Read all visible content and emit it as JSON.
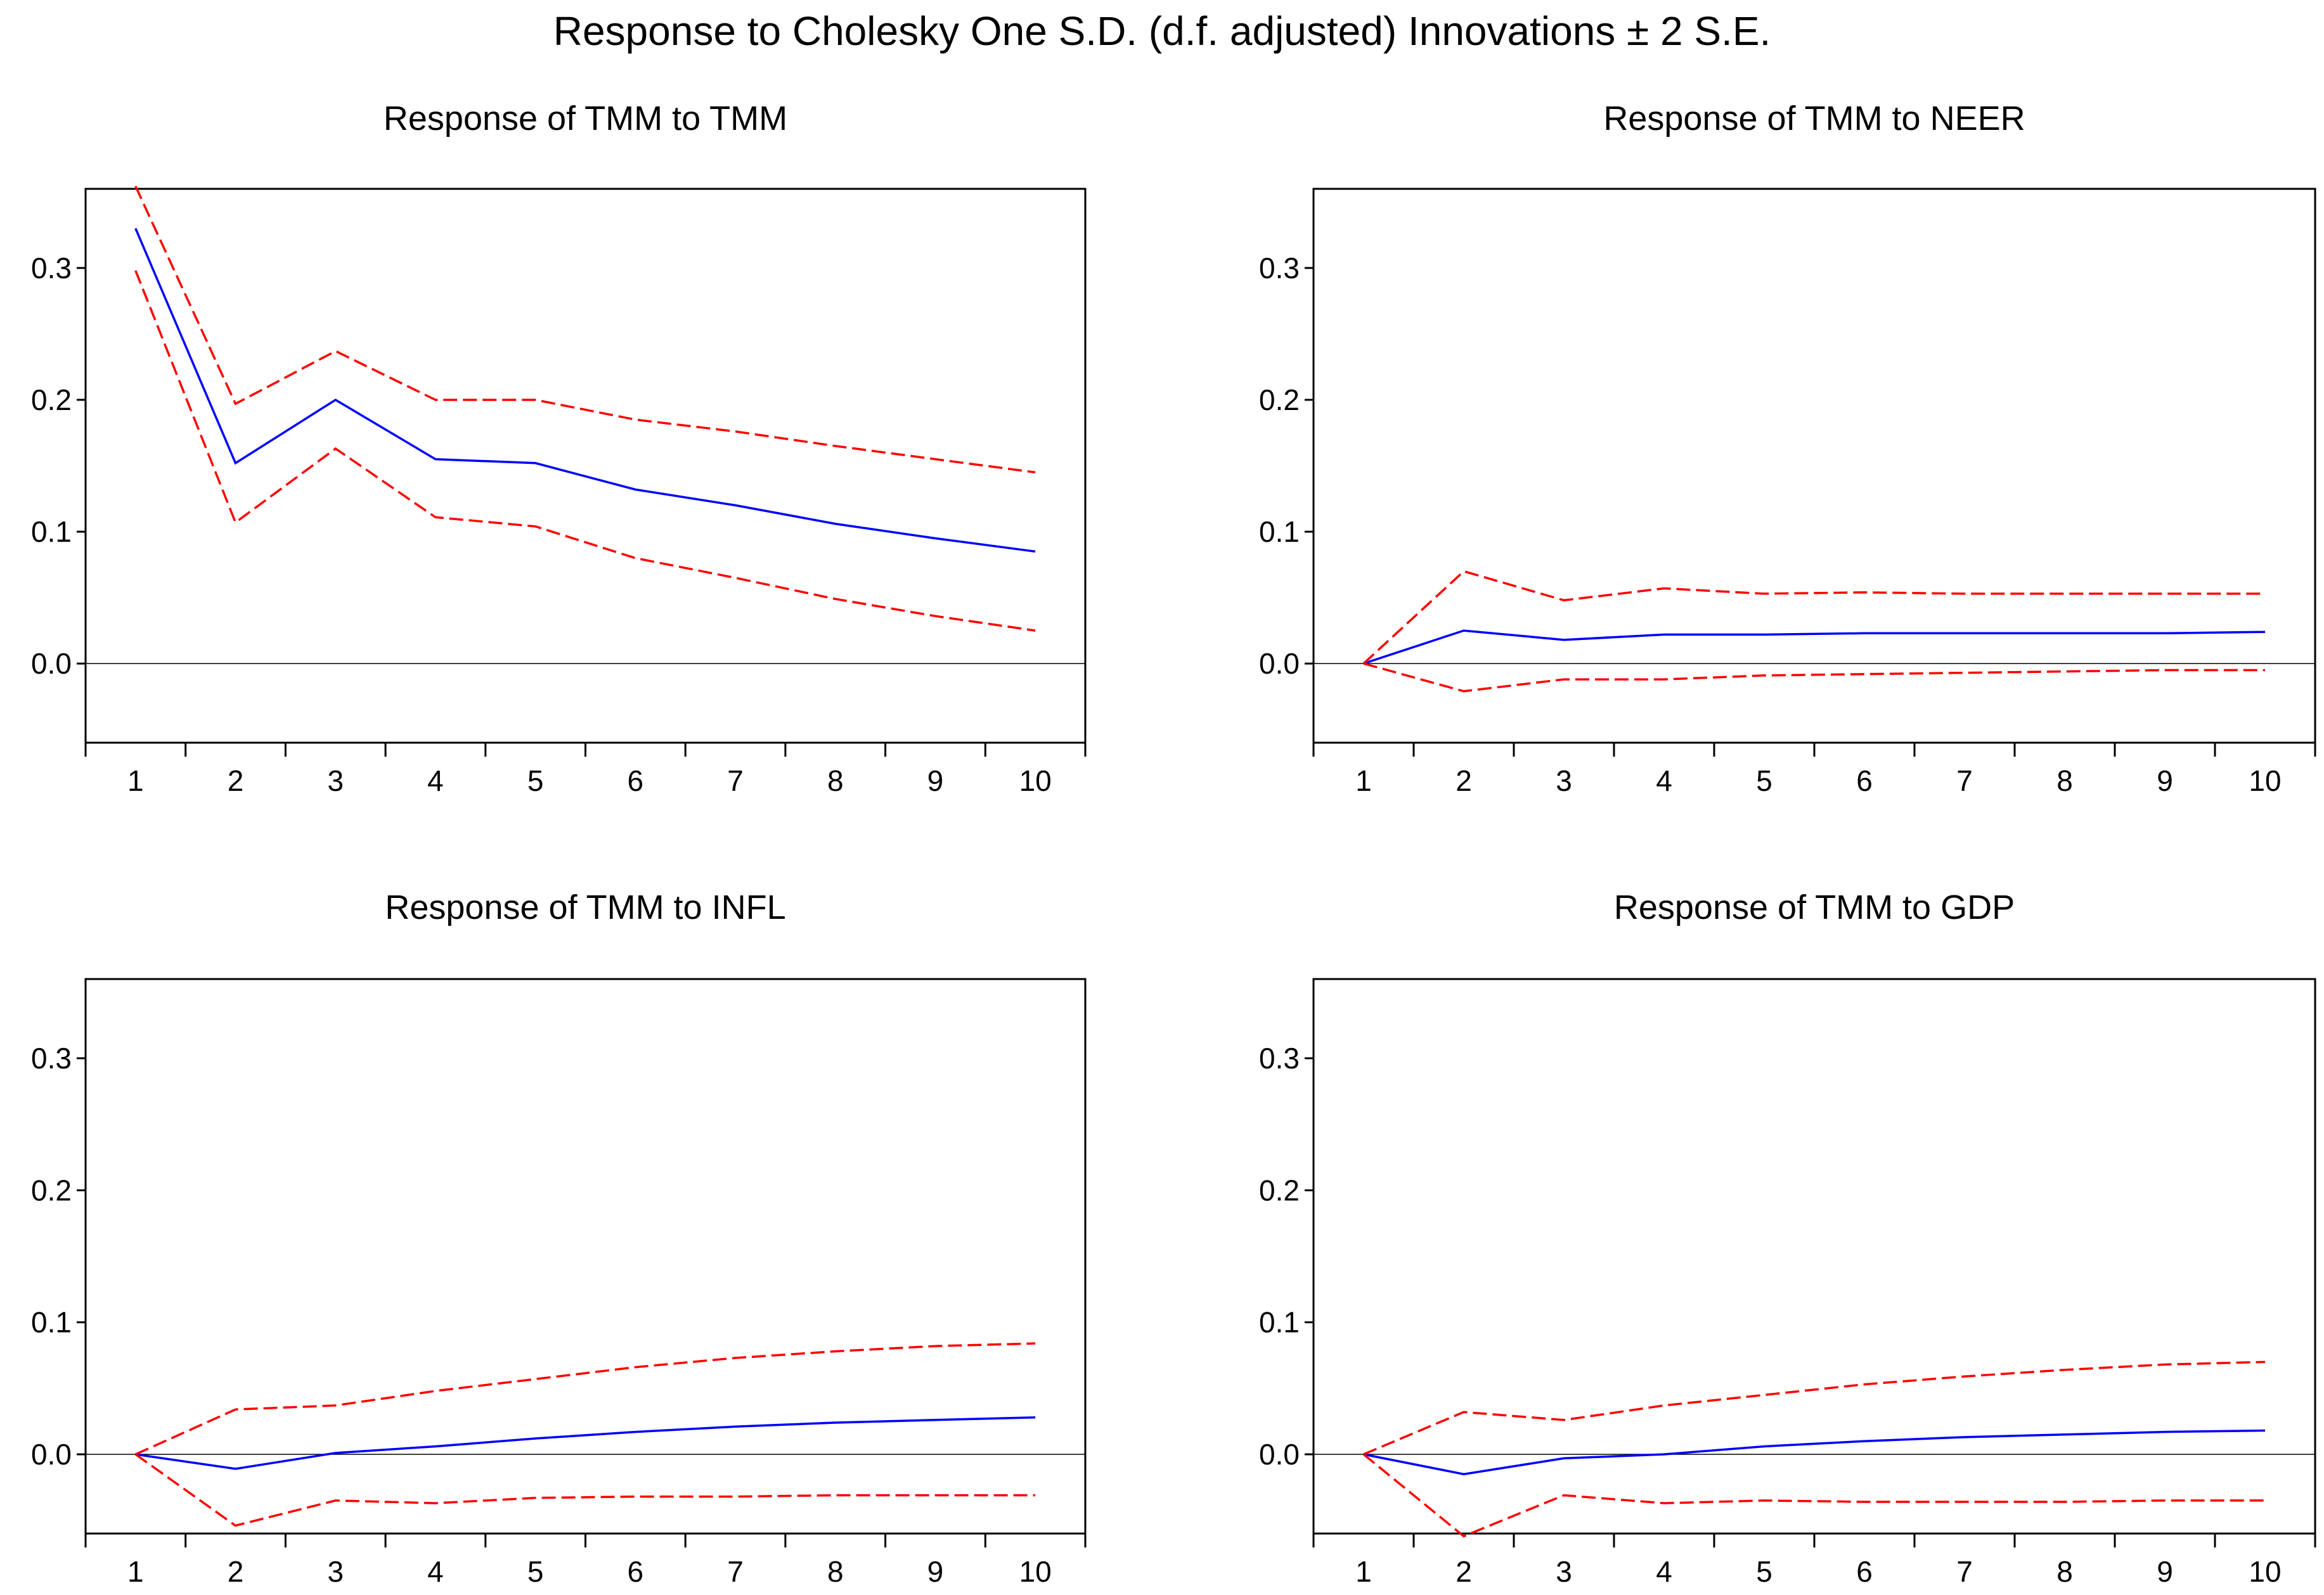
{
  "figure": {
    "title": "Response to Cholesky One S.D. (d.f. adjusted) Innovations ± 2 S.E.",
    "colors": {
      "response": "#0000ff",
      "bands": "#ff0000",
      "zero_line": "#000000",
      "frame": "#000000"
    }
  },
  "chart_data": [
    {
      "type": "line",
      "title": "Response of TMM to TMM",
      "x": [
        1,
        2,
        3,
        4,
        5,
        6,
        7,
        8,
        9,
        10
      ],
      "ylim": [
        -0.06,
        0.36
      ],
      "yticks": [
        "0.0",
        "0.1",
        "0.2",
        "0.3"
      ],
      "ytick_values": [
        0.0,
        0.1,
        0.2,
        0.3
      ],
      "xticks": [
        "1",
        "2",
        "3",
        "4",
        "5",
        "6",
        "7",
        "8",
        "9",
        "10"
      ],
      "series": [
        {
          "name": "response",
          "values": [
            0.33,
            0.152,
            0.2,
            0.155,
            0.152,
            0.132,
            0.12,
            0.106,
            0.095,
            0.085
          ]
        },
        {
          "name": "upper",
          "values": [
            0.362,
            0.197,
            0.237,
            0.2,
            0.2,
            0.185,
            0.176,
            0.165,
            0.155,
            0.145
          ]
        },
        {
          "name": "lower",
          "values": [
            0.298,
            0.107,
            0.163,
            0.111,
            0.104,
            0.08,
            0.065,
            0.049,
            0.036,
            0.025
          ]
        }
      ]
    },
    {
      "type": "line",
      "title": "Response of TMM to NEER",
      "x": [
        1,
        2,
        3,
        4,
        5,
        6,
        7,
        8,
        9,
        10
      ],
      "ylim": [
        -0.06,
        0.36
      ],
      "yticks": [
        "0.0",
        "0.1",
        "0.2",
        "0.3"
      ],
      "ytick_values": [
        0.0,
        0.1,
        0.2,
        0.3
      ],
      "xticks": [
        "1",
        "2",
        "3",
        "4",
        "5",
        "6",
        "7",
        "8",
        "9",
        "10"
      ],
      "series": [
        {
          "name": "response",
          "values": [
            0.0,
            0.025,
            0.018,
            0.022,
            0.022,
            0.023,
            0.023,
            0.023,
            0.023,
            0.024
          ]
        },
        {
          "name": "upper",
          "values": [
            0.0,
            0.07,
            0.048,
            0.057,
            0.053,
            0.054,
            0.053,
            0.053,
            0.053,
            0.053
          ]
        },
        {
          "name": "lower",
          "values": [
            0.0,
            -0.021,
            -0.012,
            -0.012,
            -0.009,
            -0.008,
            -0.007,
            -0.006,
            -0.005,
            -0.005
          ]
        }
      ]
    },
    {
      "type": "line",
      "title": "Response of TMM to INFL",
      "x": [
        1,
        2,
        3,
        4,
        5,
        6,
        7,
        8,
        9,
        10
      ],
      "ylim": [
        -0.06,
        0.36
      ],
      "yticks": [
        "0.0",
        "0.1",
        "0.2",
        "0.3"
      ],
      "ytick_values": [
        0.0,
        0.1,
        0.2,
        0.3
      ],
      "xticks": [
        "1",
        "2",
        "3",
        "4",
        "5",
        "6",
        "7",
        "8",
        "9",
        "10"
      ],
      "series": [
        {
          "name": "response",
          "values": [
            0.0,
            -0.011,
            0.001,
            0.006,
            0.012,
            0.017,
            0.021,
            0.024,
            0.026,
            0.028
          ]
        },
        {
          "name": "upper",
          "values": [
            0.0,
            0.034,
            0.037,
            0.048,
            0.057,
            0.066,
            0.073,
            0.078,
            0.082,
            0.084
          ]
        },
        {
          "name": "lower",
          "values": [
            0.0,
            -0.054,
            -0.035,
            -0.037,
            -0.033,
            -0.032,
            -0.032,
            -0.031,
            -0.031,
            -0.031
          ]
        }
      ]
    },
    {
      "type": "line",
      "title": "Response of TMM to GDP",
      "x": [
        1,
        2,
        3,
        4,
        5,
        6,
        7,
        8,
        9,
        10
      ],
      "ylim": [
        -0.06,
        0.36
      ],
      "yticks": [
        "0.0",
        "0.1",
        "0.2",
        "0.3"
      ],
      "ytick_values": [
        0.0,
        0.1,
        0.2,
        0.3
      ],
      "xticks": [
        "1",
        "2",
        "3",
        "4",
        "5",
        "6",
        "7",
        "8",
        "9",
        "10"
      ],
      "series": [
        {
          "name": "response",
          "values": [
            0.0,
            -0.015,
            -0.003,
            0.0,
            0.006,
            0.01,
            0.013,
            0.015,
            0.017,
            0.018
          ]
        },
        {
          "name": "upper",
          "values": [
            0.0,
            0.032,
            0.026,
            0.037,
            0.045,
            0.053,
            0.059,
            0.064,
            0.068,
            0.07
          ]
        },
        {
          "name": "lower",
          "values": [
            0.0,
            -0.062,
            -0.031,
            -0.037,
            -0.035,
            -0.036,
            -0.036,
            -0.036,
            -0.035,
            -0.035
          ]
        }
      ]
    }
  ]
}
